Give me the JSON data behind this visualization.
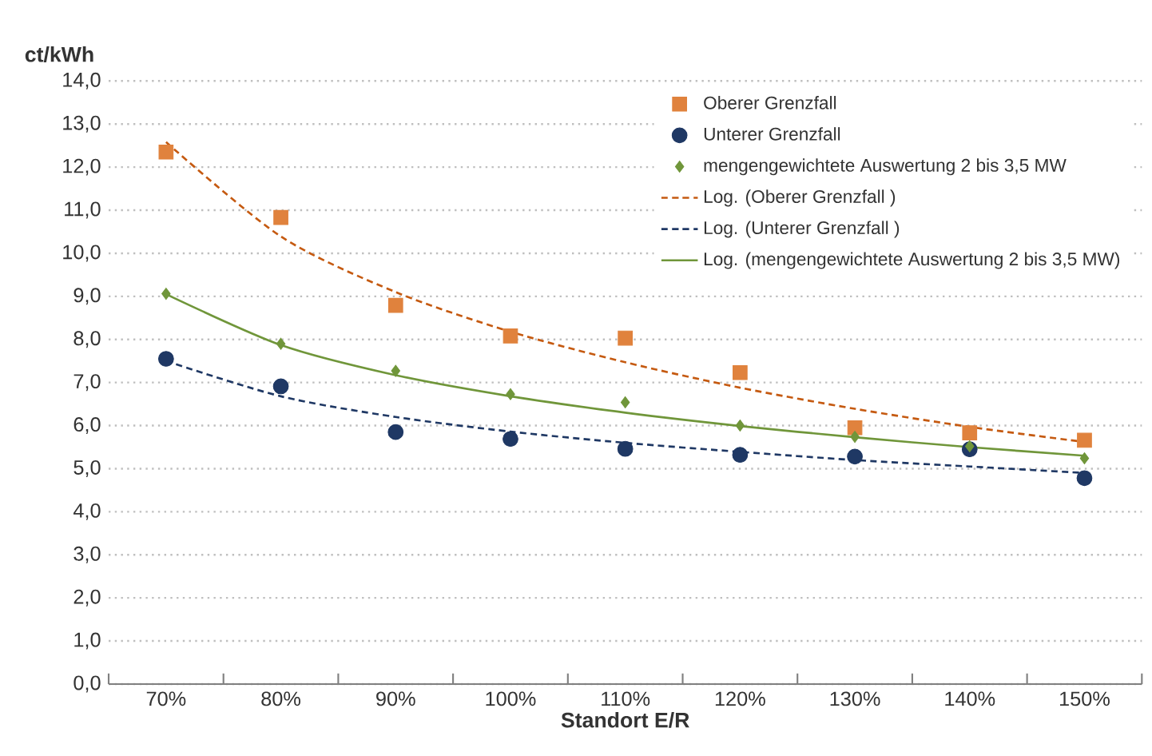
{
  "chart_data": {
    "type": "scatter",
    "xlabel": "Standort E/R",
    "ylabel": "ct/kWh",
    "categories": [
      "70%",
      "80%",
      "90%",
      "100%",
      "110%",
      "120%",
      "130%",
      "140%",
      "150%"
    ],
    "series": [
      {
        "name": "Oberer Grenzfall",
        "marker": "square",
        "color": "#e0823d",
        "values": [
          12.35,
          10.83,
          8.79,
          8.08,
          8.03,
          7.23,
          5.95,
          5.83,
          5.66
        ]
      },
      {
        "name": "Unterer Grenzfall",
        "marker": "circle",
        "color": "#1f3864",
        "values": [
          7.55,
          6.91,
          5.85,
          5.69,
          5.46,
          5.32,
          5.28,
          5.45,
          4.78
        ]
      },
      {
        "name": "mengengewichtete Auswertung 2 bis 3,5 MW",
        "marker": "diamond",
        "color": "#70963a",
        "values": [
          9.06,
          7.9,
          7.27,
          6.73,
          6.54,
          6.0,
          5.74,
          5.52,
          5.24
        ]
      },
      {
        "name": "Log. (Oberer Grenzfall )",
        "type": "line",
        "line_style": "dashed",
        "color": "#c55a11",
        "values": [
          12.58,
          10.39,
          9.1,
          8.18,
          7.47,
          6.88,
          6.39,
          5.97,
          5.62
        ]
      },
      {
        "name": "Log. (Unterer Grenzfall )",
        "type": "line",
        "line_style": "dashed",
        "color": "#1f3864",
        "values": [
          7.5,
          6.68,
          6.2,
          5.86,
          5.6,
          5.39,
          5.2,
          5.05,
          4.9
        ]
      },
      {
        "name": "Log. (mengengewichtete Auswertung 2 bis 3,5 MW)",
        "type": "line",
        "line_style": "solid",
        "color": "#70963a",
        "values": [
          9.05,
          7.87,
          7.17,
          6.68,
          6.3,
          5.99,
          5.73,
          5.5,
          5.3
        ]
      }
    ],
    "ylim": [
      0,
      14
    ],
    "yticks": [
      {
        "value": 0,
        "label": "0,0"
      },
      {
        "value": 1,
        "label": "1,0"
      },
      {
        "value": 2,
        "label": "2,0"
      },
      {
        "value": 3,
        "label": "3,0"
      },
      {
        "value": 4,
        "label": "4,0"
      },
      {
        "value": 5,
        "label": "5,0"
      },
      {
        "value": 6,
        "label": "6,0"
      },
      {
        "value": 7,
        "label": "7,0"
      },
      {
        "value": 8,
        "label": "8,0"
      },
      {
        "value": 9,
        "label": "9,0"
      },
      {
        "value": 10,
        "label": "10,0"
      },
      {
        "value": 11,
        "label": "11,0"
      },
      {
        "value": 12,
        "label": "12,0"
      },
      {
        "value": 13,
        "label": "13,0"
      },
      {
        "value": 14,
        "label": "14,0"
      }
    ],
    "grid": "y",
    "legend": "top right"
  }
}
